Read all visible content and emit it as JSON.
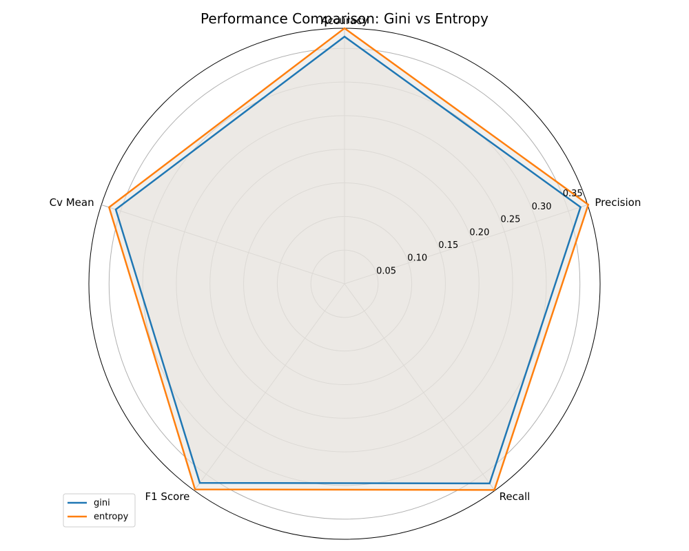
{
  "chart_data": {
    "type": "radar",
    "title": "Performance Comparison: Gini vs Entropy",
    "axes": [
      "Accuracy",
      "Precision",
      "Recall",
      "F1 Score",
      "Cv Mean"
    ],
    "r_ticks": [
      0.05,
      0.1,
      0.15,
      0.2,
      0.25,
      0.3,
      0.35
    ],
    "r_tick_labels": [
      "0.05",
      "0.10",
      "0.15",
      "0.20",
      "0.25",
      "0.30",
      "0.35"
    ],
    "r_range": [
      0,
      0.38
    ],
    "grid": true,
    "legend_position": "lower-left",
    "series": [
      {
        "name": "gini",
        "color": "#1f77b4",
        "values": [
          0.3675,
          0.369,
          0.367,
          0.366,
          0.3575
        ]
      },
      {
        "name": "entropy",
        "color": "#ff7f0e",
        "values": [
          0.38,
          0.381,
          0.379,
          0.378,
          0.368
        ]
      }
    ],
    "fill_color": "#e8e3de"
  }
}
